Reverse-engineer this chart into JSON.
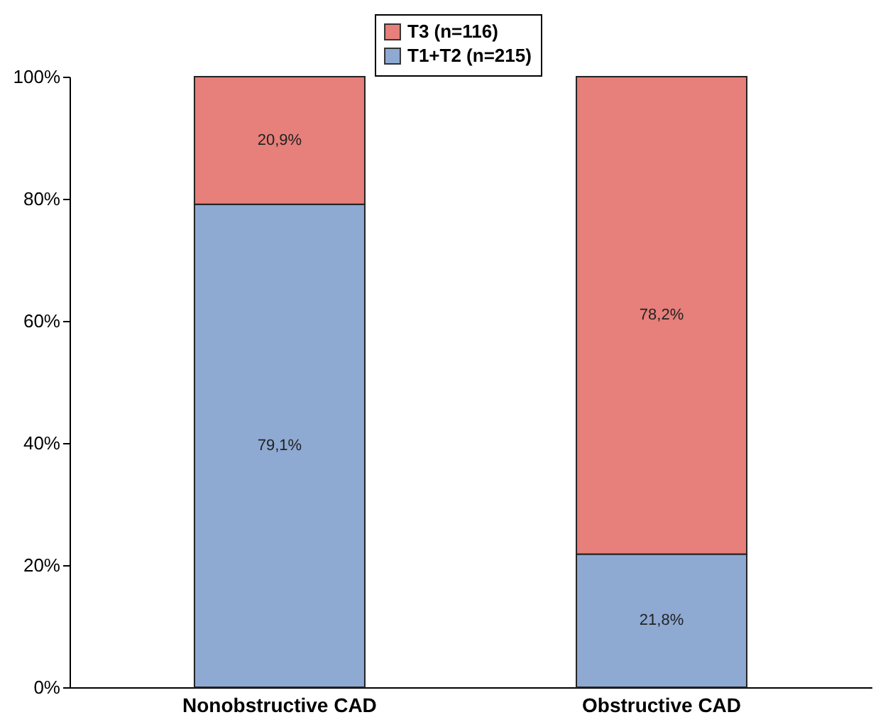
{
  "chart_data": {
    "type": "bar",
    "stacked": true,
    "categories": [
      "Nonobstructive CAD",
      "Obstructive CAD"
    ],
    "series": [
      {
        "name": "T1+T2 (n=215)",
        "color": "#8eaad3",
        "values": [
          79.1,
          21.8
        ],
        "value_labels": [
          "79,1%",
          "21,8%"
        ]
      },
      {
        "name": "T3 (n=116)",
        "color": "#e77f7a",
        "values": [
          20.9,
          78.2
        ],
        "value_labels": [
          "20,9%",
          "78,2%"
        ]
      }
    ],
    "ylim": [
      0,
      100
    ],
    "yticks": [
      {
        "value": 0,
        "label": "0%"
      },
      {
        "value": 20,
        "label": "20%"
      },
      {
        "value": 40,
        "label": "40%"
      },
      {
        "value": 60,
        "label": "60%"
      },
      {
        "value": 80,
        "label": "80%"
      },
      {
        "value": 100,
        "label": "100%"
      }
    ],
    "grid": false,
    "legend": "top"
  }
}
